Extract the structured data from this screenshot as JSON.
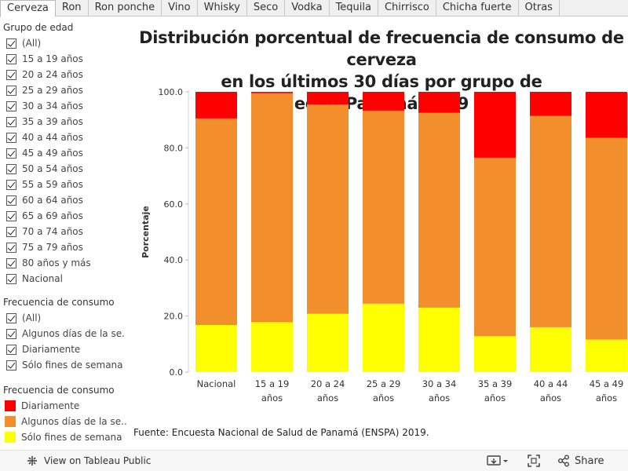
{
  "tabs": [
    "Cerveza",
    "Ron",
    "Ron ponche",
    "Vino",
    "Whisky",
    "Seco",
    "Vodka",
    "Tequila",
    "Chirrisco",
    "Chicha fuerte",
    "Otras"
  ],
  "active_tab": "Cerveza",
  "filters": {
    "age_group": {
      "title": "Grupo de edad",
      "items": [
        "(All)",
        "15 a 19 años",
        "20 a 24 años",
        "25 a 29 años",
        "30 a 34 años",
        "35 a 39 años",
        "40 a 44 años",
        "45 a 49 años",
        "50 a 54 años",
        "55 a 59 años",
        "60 a 64 años",
        "65 a 69 años",
        "70 a 74 años",
        "75 a 79 años",
        "80 años y más",
        "Nacional"
      ]
    },
    "frequency": {
      "title": "Frecuencia de consumo",
      "items": [
        "(All)",
        "Algunos días de la se...",
        "Diariamente",
        "Sólo fines de semana"
      ]
    }
  },
  "legend": {
    "title": "Frecuencia de consumo",
    "items": [
      {
        "label": "Diariamente",
        "color": "#ff0000"
      },
      {
        "label": "Algunos días de la se...",
        "color": "#f28e2b"
      },
      {
        "label": "Sólo fines de semana",
        "color": "#ffff00"
      }
    ]
  },
  "source": "Fuente: Encuesta Nacional de Salud de Panamá (ENSPA) 2019.",
  "footer": {
    "view_label": "View on Tableau Public",
    "share_label": "Share"
  },
  "chart_data": {
    "type": "bar",
    "stacked": true,
    "title_lines": [
      "Distribución porcentual de frecuencia de consumo de cerveza",
      "en los últimos 30 días por grupo de edad.Panamá.2019"
    ],
    "ylabel": "Porcentaje",
    "xlabel": "",
    "ylim": [
      0,
      100
    ],
    "yticks": [
      "100.0",
      "80.0",
      "60.0",
      "40.0",
      "20.0",
      "0.0"
    ],
    "ytick_values": [
      100,
      80,
      60,
      40,
      20,
      0
    ],
    "categories": [
      [
        "Nacional"
      ],
      [
        "15 a 19",
        "años"
      ],
      [
        "20 a 24",
        "años"
      ],
      [
        "25 a 29",
        "años"
      ],
      [
        "30 a 34",
        "años"
      ],
      [
        "35 a 39",
        "años"
      ],
      [
        "40 a 44",
        "años"
      ],
      [
        "45 a 49",
        "años"
      ]
    ],
    "series": [
      {
        "name": "Sólo fines de semana",
        "color": "#ffff00",
        "values": [
          16.8,
          17.8,
          20.8,
          24.4,
          23.0,
          12.8,
          16.0,
          11.6
        ]
      },
      {
        "name": "Algunos días de la semana",
        "color": "#f28e2b",
        "values": [
          73.7,
          81.7,
          74.7,
          68.9,
          69.5,
          63.7,
          75.4,
          72.0
        ]
      },
      {
        "name": "Diariamente",
        "color": "#ff0000",
        "values": [
          9.5,
          0.5,
          4.5,
          6.7,
          7.5,
          23.5,
          8.6,
          16.4
        ]
      }
    ],
    "grid": false
  }
}
